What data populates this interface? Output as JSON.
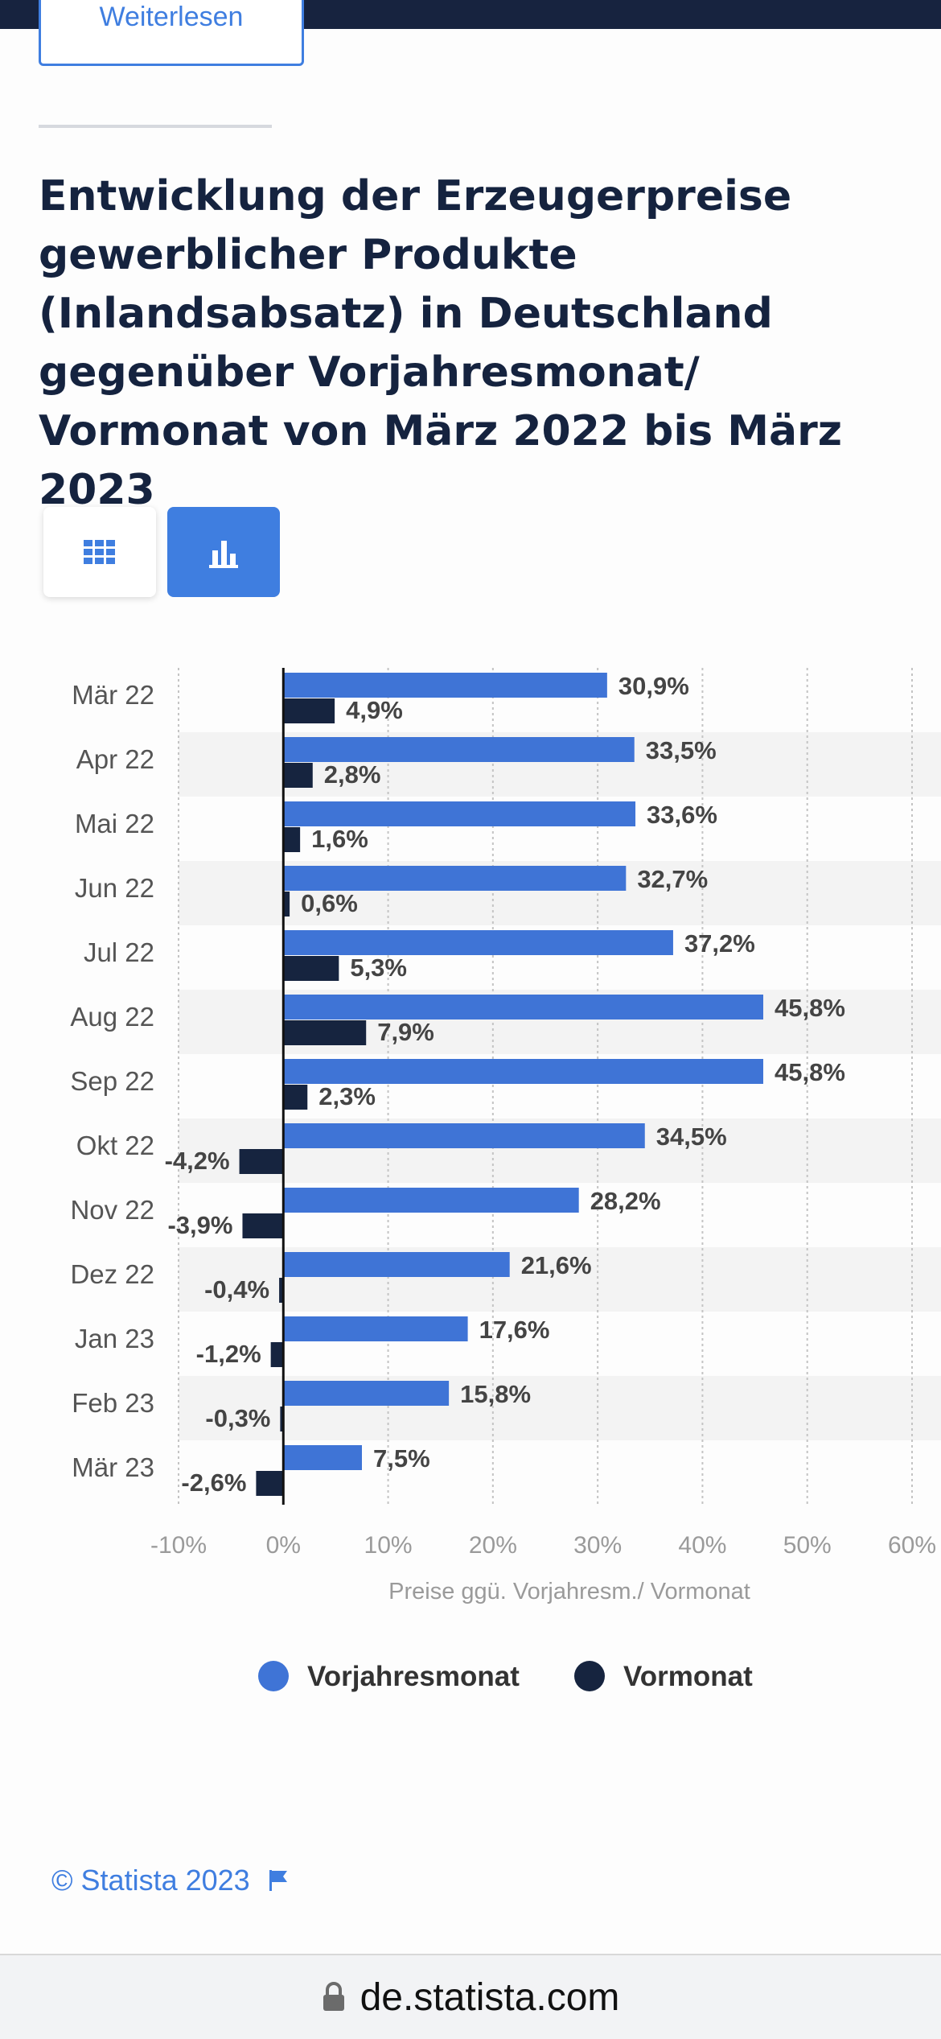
{
  "header": {
    "button_label": "Weiterlesen"
  },
  "title": "Entwicklung der Erzeugerpreise gewerblicher Produkte (Inlandsabsatz) in Deutschland gegenüber Vorjahresmonat/ Vormonat von März 2022 bis März 2023",
  "view_toggle": {
    "table_icon": "grid-icon",
    "chart_icon": "bar-chart-icon"
  },
  "colors": {
    "vorjahresmonat": "#3f74d6",
    "vormonat": "#16243f",
    "accent": "#3f7ee0"
  },
  "chart_data": {
    "type": "bar",
    "orientation": "horizontal",
    "categories": [
      "Mär 22",
      "Apr 22",
      "Mai 22",
      "Jun 22",
      "Jul 22",
      "Aug 22",
      "Sep 22",
      "Okt 22",
      "Nov 22",
      "Dez 22",
      "Jan 23",
      "Feb 23",
      "Mär 23"
    ],
    "series": [
      {
        "name": "Vorjahresmonat",
        "values": [
          30.9,
          33.5,
          33.6,
          32.7,
          37.2,
          45.8,
          45.8,
          34.5,
          28.2,
          21.6,
          17.6,
          15.8,
          7.5
        ],
        "labels": [
          "30,9%",
          "33,5%",
          "33,6%",
          "32,7%",
          "37,2%",
          "45,8%",
          "45,8%",
          "34,5%",
          "28,2%",
          "21,6%",
          "17,6%",
          "15,8%",
          "7,5%"
        ]
      },
      {
        "name": "Vormonat",
        "values": [
          4.9,
          2.8,
          1.6,
          0.6,
          5.3,
          7.9,
          2.3,
          -4.2,
          -3.9,
          -0.4,
          -1.2,
          -0.3,
          -2.6
        ],
        "labels": [
          "4,9%",
          "2,8%",
          "1,6%",
          "0,6%",
          "5,3%",
          "7,9%",
          "2,3%",
          "-4,2%",
          "-3,9%",
          "-0,4%",
          "-1,2%",
          "-0,3%",
          "-2,6%"
        ]
      }
    ],
    "xlim": [
      -10,
      60
    ],
    "xticks": [
      "-10%",
      "0%",
      "10%",
      "20%",
      "30%",
      "40%",
      "50%",
      "60%"
    ],
    "xlabel": "Preise ggü. Vorjahresm./ Vormonat",
    "grid": true,
    "legend_position": "bottom"
  },
  "footer": {
    "copyright": "© Statista 2023",
    "flag_icon": "flag-icon"
  },
  "browser": {
    "url": "de.statista.com",
    "lock_icon": "lock-icon"
  }
}
